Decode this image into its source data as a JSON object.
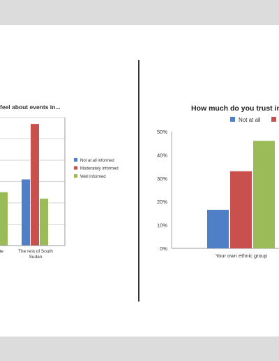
{
  "colors": {
    "blue": "#4f7fc7",
    "red": "#c8504d",
    "green": "#9bbb59",
    "axis": "#999999",
    "grid": "#d6d6d6",
    "text": "#333333"
  },
  "chart_data": [
    {
      "type": "bar",
      "title": "feel about events in...",
      "categories": [
        "state",
        "The rest of South Sudan"
      ],
      "category_lines": [
        [
          "state"
        ],
        [
          "The rest of South",
          "Sudan"
        ]
      ],
      "series": [
        {
          "name": "Not at all informed",
          "color": "#4f7fc7",
          "values": [
            null,
            31
          ]
        },
        {
          "name": "Moderately informed",
          "color": "#c8504d",
          "values": [
            null,
            57
          ]
        },
        {
          "name": "Well informed",
          "color": "#9bbb59",
          "values": [
            25,
            22
          ]
        }
      ],
      "ylim": [
        0,
        60
      ],
      "grid": true,
      "legend": "right"
    },
    {
      "type": "bar",
      "title": "How much do you trust in",
      "categories": [
        "Your own ethnic group"
      ],
      "series": [
        {
          "name": "Not at all",
          "color": "#4f7fc7",
          "values": [
            16.5
          ]
        },
        {
          "name": "",
          "color": "#c8504d",
          "values": [
            33
          ]
        },
        {
          "name": "",
          "color": "#9bbb59",
          "values": [
            46
          ]
        }
      ],
      "yticks": [
        "0%",
        "10%",
        "20%",
        "30%",
        "40%",
        "50%"
      ],
      "ylim": [
        0,
        50
      ],
      "grid": false,
      "legend": "top"
    }
  ]
}
